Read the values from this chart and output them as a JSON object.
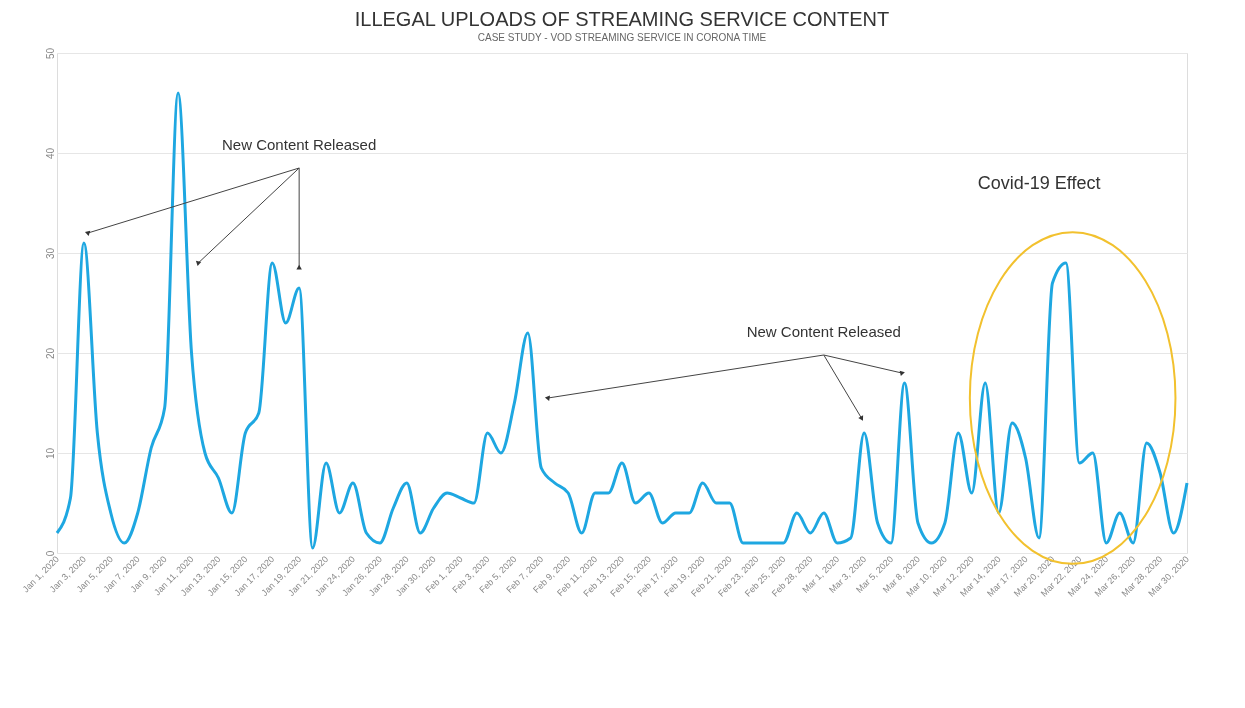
{
  "chart_data": {
    "type": "line",
    "title": "ILLEGAL UPLOADS OF STREAMING SERVICE CONTENT",
    "categories": [
      "Jan 1, 2020",
      null,
      "Jan 3, 2020",
      null,
      "Jan 5, 2020",
      null,
      "Jan 7, 2020",
      null,
      "Jan 9, 2020",
      null,
      "Jan 11, 2020",
      null,
      "Jan 13, 2020",
      null,
      "Jan 15, 2020",
      null,
      "Jan 17, 2020",
      null,
      "Jan 19, 2020",
      null,
      "Jan 21, 2020",
      null,
      "Jan 24, 2020",
      null,
      "Jan 26, 2020",
      null,
      "Jan 28, 2020",
      null,
      "Jan 30, 2020",
      null,
      "Feb 1, 2020",
      null,
      "Feb 3, 2020",
      null,
      "Feb 5, 2020",
      null,
      "Feb 7, 2020",
      null,
      "Feb 9, 2020",
      null,
      "Feb 11, 2020",
      null,
      "Feb 13, 2020",
      null,
      "Feb 15, 2020",
      null,
      "Feb 17, 2020",
      null,
      "Feb 19, 2020",
      null,
      "Feb 21, 2020",
      null,
      "Feb 23, 2020",
      null,
      "Feb 25, 2020",
      null,
      "Feb 28, 2020",
      null,
      "Mar 1, 2020",
      null,
      "Mar 3, 2020",
      null,
      "Mar 5, 2020",
      null,
      "Mar 8, 2020",
      null,
      "Mar 10, 2020",
      null,
      "Mar 12, 2020",
      null,
      "Mar 14, 2020",
      null,
      "Mar 17, 2020",
      null,
      "Mar 20, 2020",
      null,
      "Mar 22, 2020",
      null,
      "Mar 24, 2020",
      null,
      "Mar 26, 2020",
      null,
      "Mar 28, 2020",
      null,
      "Mar 30, 2020"
    ],
    "series": [
      {
        "color": "#1ea7e1",
        "values": [
          2,
          5.5,
          31,
          12,
          4,
          1,
          4,
          10.5,
          14.5,
          46,
          20,
          10,
          7.5,
          4,
          12,
          14,
          29,
          23,
          26.5,
          0.5,
          9,
          4,
          7,
          2,
          1,
          4.5,
          7,
          2,
          4.5,
          6,
          5.5,
          5,
          12,
          10,
          15,
          22,
          8.5,
          7,
          6,
          2,
          6,
          6,
          9,
          5,
          6,
          3,
          4,
          4,
          7,
          5,
          5,
          1,
          1,
          1,
          1,
          4,
          2,
          4,
          1,
          1.5,
          12,
          3,
          1,
          17,
          3,
          1,
          3,
          12,
          6,
          17,
          4,
          13,
          9.5,
          1.5,
          27,
          29,
          9,
          10,
          1,
          4,
          1,
          11,
          8,
          2,
          7
        ]
      }
    ],
    "ylim": [
      0,
      50
    ],
    "yticks": [
      0,
      10,
      20,
      30,
      40,
      50
    ],
    "grid": "y",
    "line_style": "solid",
    "marker": "none",
    "annotations": [
      "New Content Released",
      "New Content Released",
      "Covid-19 Effect",
      "CASE STUDY - VOD STREAMING SERVICE IN CORONA TIME"
    ]
  }
}
